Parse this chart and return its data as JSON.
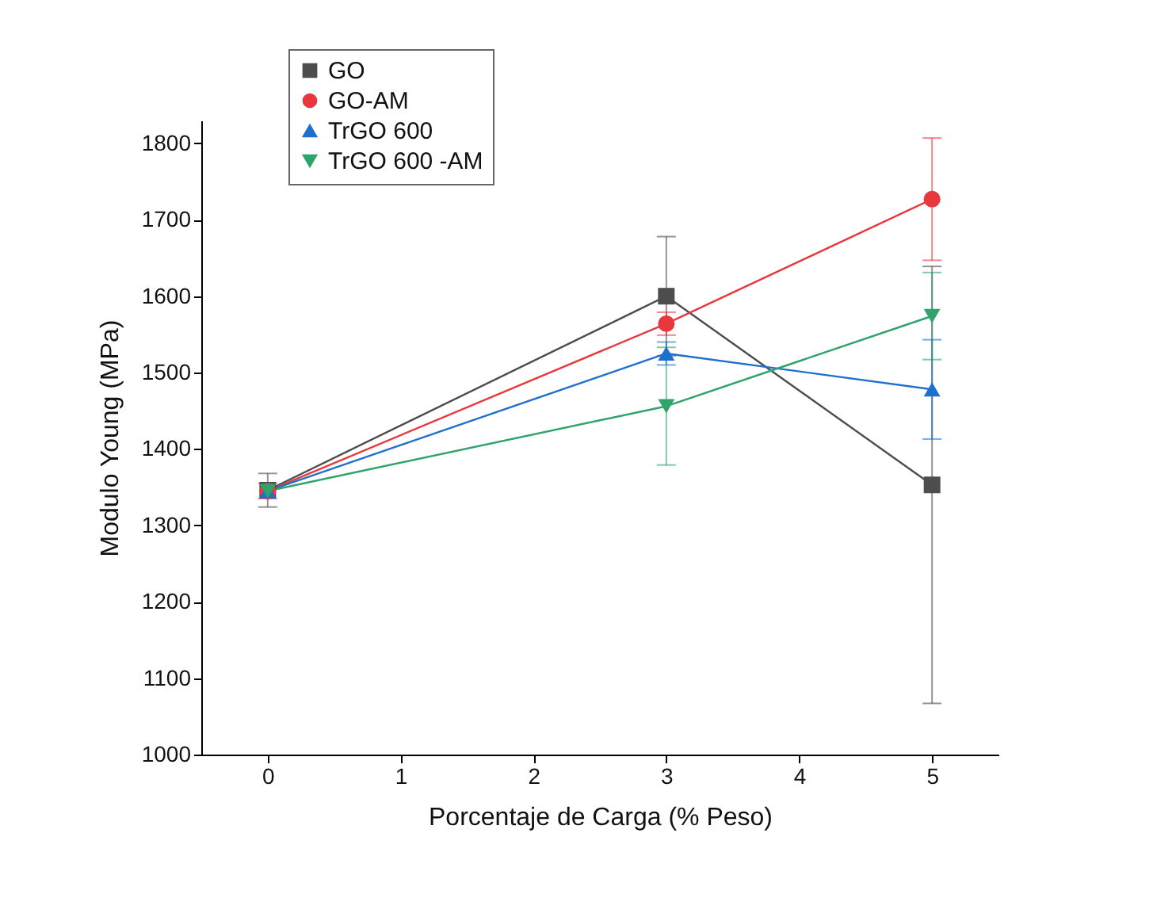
{
  "chart_data": {
    "type": "line",
    "xlabel": "Porcentaje de Carga (% Peso)",
    "ylabel": "Modulo  Young (MPa)",
    "x": [
      0,
      3,
      5
    ],
    "xlim": [
      -0.5,
      5.5
    ],
    "xticks": [
      0,
      1,
      2,
      3,
      4,
      5
    ],
    "ylim": [
      1000,
      1830
    ],
    "yticks": [
      1000,
      1100,
      1200,
      1300,
      1400,
      1500,
      1600,
      1700,
      1800
    ],
    "grid": false,
    "legend": "top left",
    "series": [
      {
        "name": "GO",
        "color": "#4d4d4d",
        "marker": "square",
        "values": [
          1346,
          1600,
          1353
        ],
        "errors": [
          22,
          78,
          286
        ]
      },
      {
        "name": "GO-AM",
        "color": "#e8383d",
        "marker": "circle",
        "values": [
          1345,
          1564,
          1727
        ],
        "errors": [
          10,
          15,
          80
        ]
      },
      {
        "name": "TrGO 600",
        "color": "#1f6fd0",
        "marker": "triangle",
        "values": [
          1345,
          1525,
          1478
        ],
        "errors": [
          null,
          15,
          65
        ]
      },
      {
        "name": "TrGO 600 -AM",
        "color": "#2fa36b",
        "marker": "triangle-down",
        "values": [
          1345,
          1456,
          1574
        ],
        "errors": [
          null,
          77,
          57
        ]
      }
    ]
  }
}
